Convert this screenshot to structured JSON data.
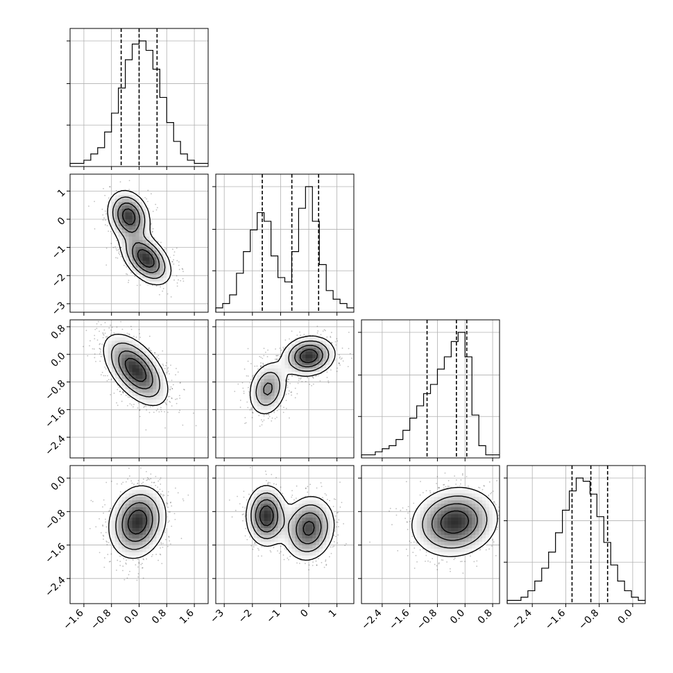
{
  "chart_data": {
    "type": "corner",
    "grid": true,
    "quantile_lines": "dashed",
    "variables": [
      {
        "range": [
          -2.0,
          2.0
        ],
        "ticks": [
          -1.6,
          -0.8,
          0.0,
          0.8,
          1.6
        ],
        "tick_labels": [
          "−1.6",
          "−0.8",
          "0.0",
          "0.8",
          "1.6"
        ],
        "quantiles": [
          -0.52,
          0.0,
          0.52
        ]
      },
      {
        "range": [
          -3.3,
          1.6
        ],
        "ticks": [
          -3,
          -2,
          -1,
          0,
          1
        ],
        "tick_labels": [
          "−3",
          "−2",
          "−1",
          "0",
          "1"
        ],
        "quantiles": [
          -1.65,
          -0.6,
          0.35
        ]
      },
      {
        "range": [
          -3.0,
          1.0
        ],
        "ticks": [
          -2.4,
          -1.6,
          -0.8,
          0.0,
          0.8
        ],
        "tick_labels": [
          "−2.4",
          "−1.6",
          "−0.8",
          "0.0",
          "0.8"
        ],
        "quantiles": [
          -1.1,
          -0.25,
          0.05
        ]
      },
      {
        "range": [
          -3.0,
          0.3
        ],
        "ticks": [
          -2.4,
          -1.6,
          -0.8,
          0.0
        ],
        "tick_labels": [
          "−2.4",
          "−1.6",
          "−0.8",
          "0.0"
        ],
        "quantiles": [
          -1.45,
          -1.0,
          -0.6
        ]
      }
    ],
    "histograms": [
      {
        "variable": 0,
        "counts": [
          1,
          1,
          2,
          4,
          6,
          11,
          17,
          25,
          34,
          39,
          40,
          37,
          31,
          22,
          14,
          8,
          4,
          2,
          1,
          1
        ]
      },
      {
        "variable": 1,
        "counts": [
          1,
          2,
          4,
          9,
          14,
          19,
          23,
          21,
          13,
          8,
          7,
          14,
          24,
          29,
          21,
          11,
          5,
          3,
          2,
          1
        ]
      },
      {
        "variable": 2,
        "counts": [
          1,
          1,
          2,
          3,
          4,
          6,
          9,
          13,
          17,
          21,
          24,
          29,
          33,
          38,
          41,
          33,
          14,
          4,
          1,
          1
        ]
      },
      {
        "variable": 3,
        "counts": [
          1,
          1,
          2,
          4,
          7,
          11,
          16,
          22,
          29,
          35,
          39,
          38,
          34,
          27,
          19,
          12,
          7,
          4,
          2,
          1
        ]
      }
    ],
    "joint_modes": [
      {
        "x": 0,
        "y": 1,
        "modes": [
          {
            "mx": -0.3,
            "my": 0.1,
            "sx": 0.3,
            "sy": 0.45,
            "rho": -0.2,
            "w": 0.45
          },
          {
            "mx": 0.2,
            "my": -1.4,
            "sx": 0.35,
            "sy": 0.45,
            "rho": -0.45,
            "w": 0.55
          }
        ]
      },
      {
        "x": 0,
        "y": 2,
        "modes": [
          {
            "mx": -0.1,
            "my": -0.45,
            "sx": 0.45,
            "sy": 0.5,
            "rho": -0.55,
            "w": 1.0
          }
        ]
      },
      {
        "x": 1,
        "y": 2,
        "modes": [
          {
            "mx": 0.0,
            "my": -0.05,
            "sx": 0.45,
            "sy": 0.28,
            "rho": 0.1,
            "w": 0.6
          },
          {
            "mx": -1.45,
            "my": -1.0,
            "sx": 0.35,
            "sy": 0.4,
            "rho": 0.2,
            "w": 0.4
          }
        ]
      },
      {
        "x": 0,
        "y": 3,
        "modes": [
          {
            "mx": -0.05,
            "my": -1.05,
            "sx": 0.4,
            "sy": 0.42,
            "rho": 0.15,
            "w": 1.0
          }
        ]
      },
      {
        "x": 1,
        "y": 3,
        "modes": [
          {
            "mx": -1.5,
            "my": -0.9,
            "sx": 0.35,
            "sy": 0.35,
            "rho": 0.0,
            "w": 0.45
          },
          {
            "mx": 0.0,
            "my": -1.2,
            "sx": 0.45,
            "sy": 0.38,
            "rho": 0.1,
            "w": 0.55
          }
        ]
      },
      {
        "x": 2,
        "y": 3,
        "modes": [
          {
            "mx": -0.3,
            "my": -1.05,
            "sx": 0.6,
            "sy": 0.4,
            "rho": 0.1,
            "w": 1.0
          }
        ]
      }
    ]
  }
}
